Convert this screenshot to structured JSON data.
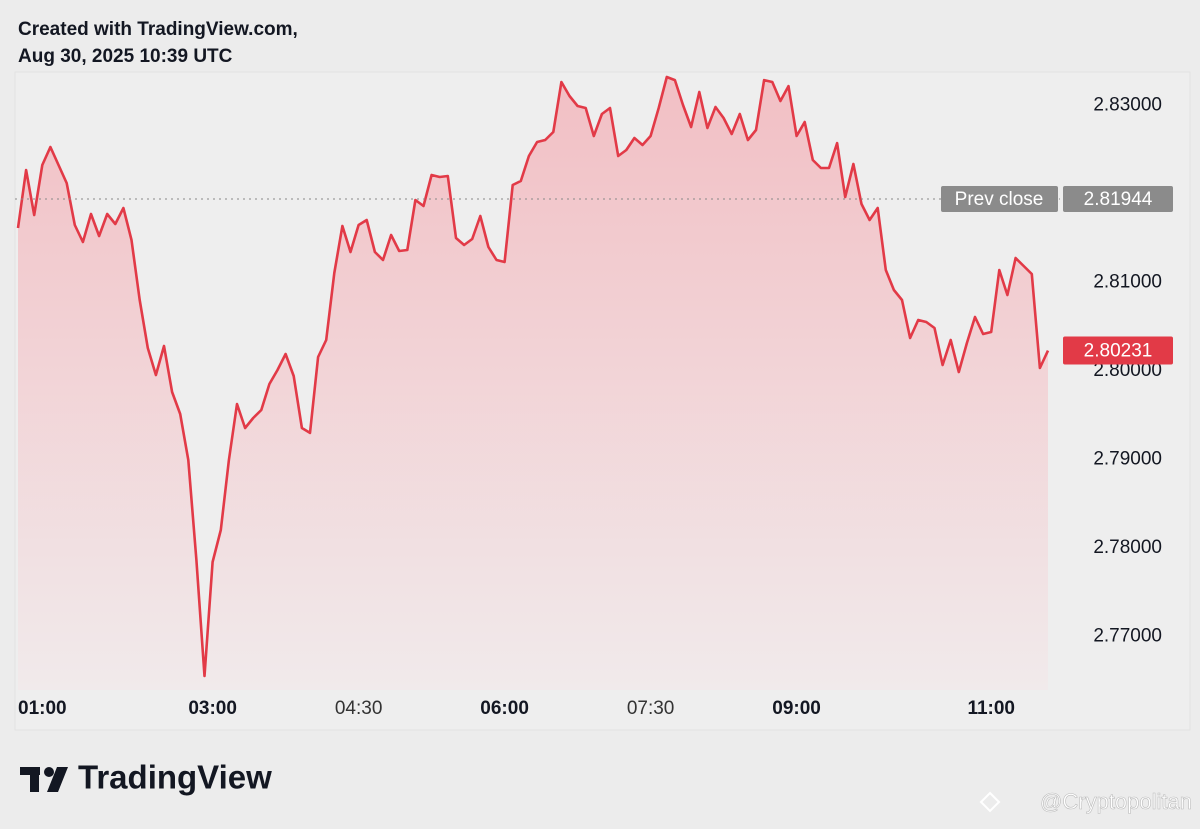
{
  "chart_data": {
    "type": "area",
    "title": "Created with TradingView.com,",
    "subtitle": "Aug 30, 2025 10:39 UTC",
    "brand": "TradingView",
    "watermark": "@Cryptopolitan",
    "color": "#e23a47",
    "x": [
      "01:00",
      "01:05",
      "01:10",
      "01:15",
      "01:20",
      "01:30",
      "01:35",
      "01:40",
      "01:45",
      "01:50",
      "01:55",
      "02:00",
      "02:05",
      "02:10",
      "02:15",
      "02:20",
      "02:25",
      "02:30",
      "02:35",
      "02:40",
      "02:45",
      "02:50",
      "02:55",
      "03:00",
      "03:05",
      "03:10",
      "03:15",
      "03:20",
      "03:25",
      "03:30",
      "03:35",
      "03:40",
      "03:45",
      "03:50",
      "03:55",
      "04:00",
      "04:05",
      "04:10",
      "04:15",
      "04:20",
      "04:25",
      "04:30",
      "04:35",
      "04:40",
      "04:45",
      "04:50",
      "04:55",
      "05:00",
      "05:05",
      "05:10",
      "05:15",
      "05:20",
      "05:25",
      "05:30",
      "05:35",
      "05:40",
      "05:45",
      "05:50",
      "05:55",
      "06:00",
      "06:05",
      "06:10",
      "06:15",
      "06:20",
      "06:25",
      "06:30",
      "06:35",
      "06:40",
      "06:45",
      "06:50",
      "06:55",
      "07:00",
      "07:05",
      "07:10",
      "07:15",
      "07:20",
      "07:25",
      "07:30",
      "07:35",
      "07:40",
      "07:45",
      "07:50",
      "07:55",
      "08:00",
      "08:05",
      "08:10",
      "08:15",
      "08:20",
      "08:25",
      "08:30",
      "08:35",
      "08:40",
      "08:45",
      "08:50",
      "08:55",
      "09:00",
      "09:05",
      "09:10",
      "09:15",
      "09:20",
      "09:25",
      "09:30",
      "09:35",
      "09:40",
      "09:45",
      "09:50",
      "09:55",
      "10:00",
      "10:05",
      "10:10",
      "10:15",
      "10:20",
      "10:25",
      "10:30",
      "10:35",
      "10:40",
      "10:45",
      "10:50",
      "10:55",
      "11:00",
      "11:05",
      "11:10",
      "11:15",
      "11:20",
      "11:25",
      "11:30",
      "11:35"
    ],
    "values": [
      2.81616,
      2.82271,
      2.81763,
      2.82328,
      2.82531,
      2.82124,
      2.8165,
      2.81458,
      2.81774,
      2.81526,
      2.81774,
      2.81661,
      2.81842,
      2.8148,
      2.80802,
      2.8026,
      2.79955,
      2.80283,
      2.79763,
      2.79514,
      2.78994,
      2.77864,
      2.76553,
      2.77842,
      2.78203,
      2.78994,
      2.79627,
      2.79356,
      2.79469,
      2.79559,
      2.79853,
      2.80011,
      2.80192,
      2.79943,
      2.79356,
      2.793,
      2.80158,
      2.8035,
      2.81107,
      2.81639,
      2.81345,
      2.8165,
      2.81706,
      2.81345,
      2.81254,
      2.81537,
      2.81356,
      2.81367,
      2.81932,
      2.81865,
      2.82215,
      2.82192,
      2.82204,
      2.81503,
      2.81424,
      2.81492,
      2.81752,
      2.81401,
      2.81254,
      2.81232,
      2.82102,
      2.82147,
      2.8243,
      2.82588,
      2.8261,
      2.82701,
      2.83266,
      2.83108,
      2.82995,
      2.82972,
      2.82656,
      2.82904,
      2.82972,
      2.8243,
      2.82497,
      2.82633,
      2.82554,
      2.82656,
      2.82972,
      2.83322,
      2.83288,
      2.83006,
      2.82757,
      2.83153,
      2.82746,
      2.82983,
      2.82859,
      2.82678,
      2.82904,
      2.8261,
      2.82723,
      2.83288,
      2.83266,
      2.83051,
      2.8322,
      2.82656,
      2.82814,
      2.82384,
      2.82294,
      2.82294,
      2.82576,
      2.81966,
      2.82339,
      2.81887,
      2.81706,
      2.81842,
      2.81141,
      2.80915,
      2.80802,
      2.80373,
      2.80576,
      2.80554,
      2.80486,
      2.80068,
      2.8035,
      2.79989,
      2.80316,
      2.8061,
      2.80418,
      2.80441,
      2.81141,
      2.80859,
      2.81277,
      2.81187,
      2.81096,
      2.80034,
      2.80231
    ],
    "xlim": [
      "01:00",
      "11:35"
    ],
    "xticks": [
      "01:00",
      "03:00",
      "04:30",
      "06:00",
      "07:30",
      "09:00",
      "11:00"
    ],
    "ylim": [
      2.76395,
      2.83379
    ],
    "yticks": [
      {
        "value": 2.77,
        "label": "2.77000"
      },
      {
        "value": 2.78,
        "label": "2.78000"
      },
      {
        "value": 2.79,
        "label": "2.79000"
      },
      {
        "value": 2.8,
        "label": "2.80000"
      },
      {
        "value": 2.81,
        "label": "2.81000"
      },
      {
        "value": 2.83,
        "label": "2.83000"
      }
    ],
    "prev_close": {
      "label": "Prev close",
      "value": 2.81944
    }
  }
}
